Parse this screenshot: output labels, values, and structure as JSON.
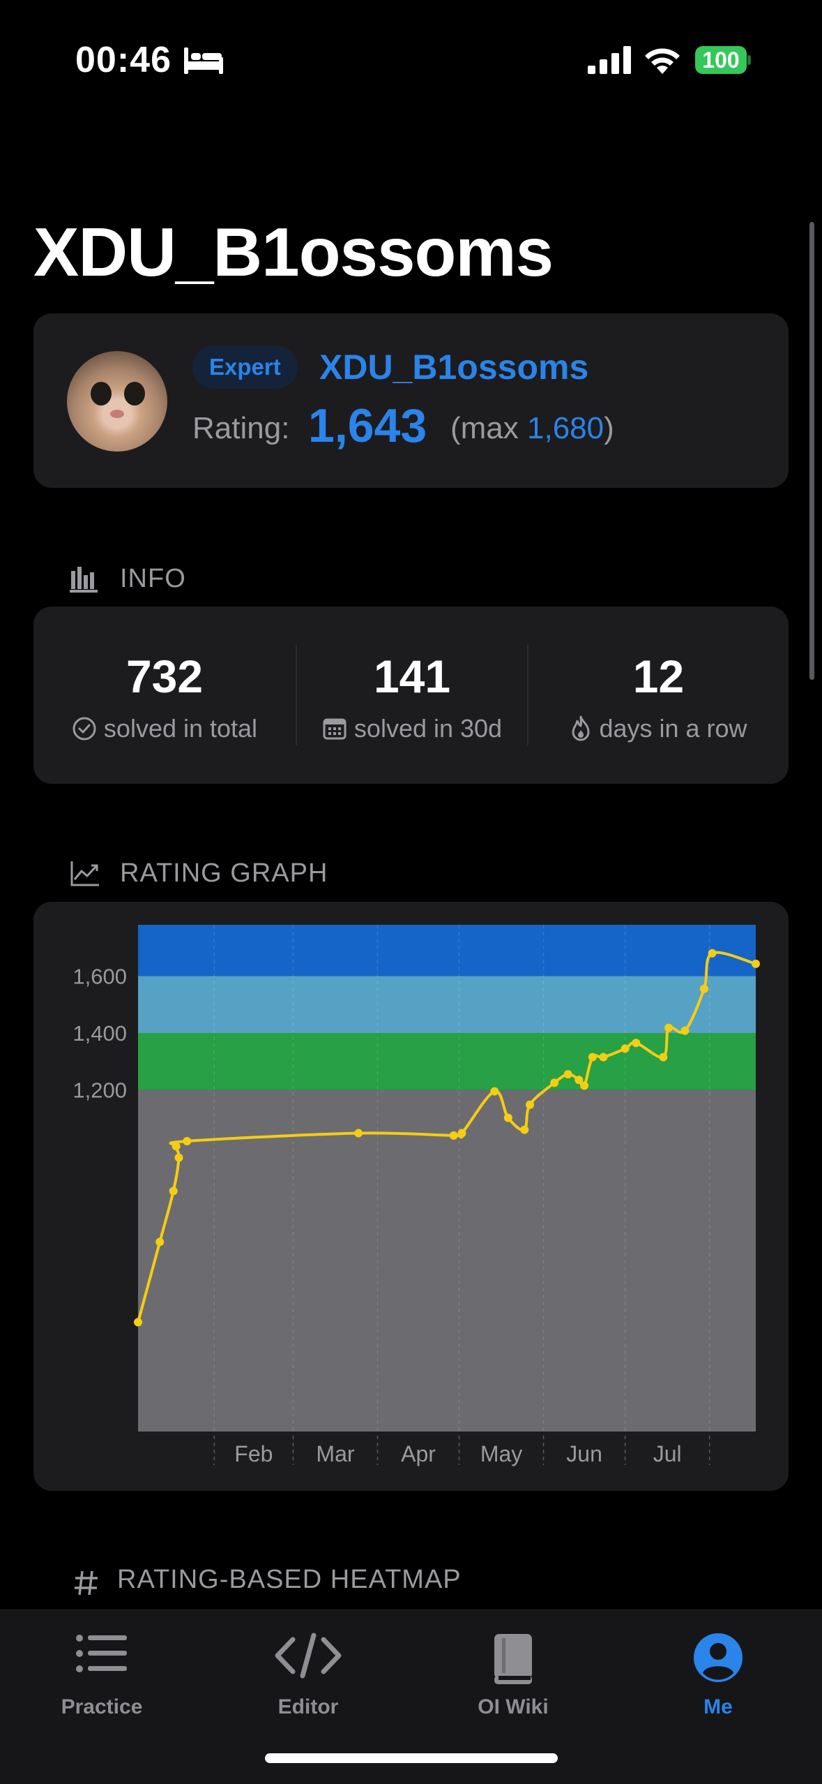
{
  "status_bar": {
    "time": "00:46",
    "battery": "100",
    "icons": [
      "bed-icon",
      "signal-icon",
      "wifi-icon",
      "battery-icon"
    ]
  },
  "page": {
    "title": "XDU_B1ossoms"
  },
  "profile": {
    "rank_badge": "Expert",
    "handle": "XDU_B1ossoms",
    "rating_label": "Rating:",
    "rating": "1,643",
    "max_prefix": "(max",
    "max_rating": "1,680",
    "max_suffix": ")"
  },
  "info": {
    "header": "INFO",
    "stats": [
      {
        "value": "732",
        "label": "solved in total",
        "icon": "check-circle-icon"
      },
      {
        "value": "141",
        "label": "solved in 30d",
        "icon": "calendar-icon"
      },
      {
        "value": "12",
        "label": "days in a row",
        "icon": "flame-icon"
      }
    ]
  },
  "rating_graph": {
    "header": "RATING GRAPH"
  },
  "heatmap": {
    "header": "RATING-BASED HEATMAP"
  },
  "chart_data": {
    "type": "line",
    "title": "",
    "xlabel": "",
    "ylabel": "",
    "x_ticks": [
      "Feb",
      "Mar",
      "Apr",
      "May",
      "Jun",
      "Jul"
    ],
    "y_ticks": [
      1200,
      1400,
      1600
    ],
    "ylim": [
      0,
      1780
    ],
    "grid": true,
    "bands": [
      {
        "from": 0,
        "to": 1200,
        "color": "#6c6c70"
      },
      {
        "from": 1200,
        "to": 1400,
        "color": "#28a045"
      },
      {
        "from": 1400,
        "to": 1600,
        "color": "#56a2c4"
      },
      {
        "from": 1600,
        "to": 1780,
        "color": "#1565c8"
      }
    ],
    "line_color": "#f5cd13",
    "series": [
      {
        "points": [
          [
            "2024-01-04",
            384
          ],
          [
            "2024-01-12",
            666
          ],
          [
            "2024-01-17",
            845
          ],
          [
            "2024-01-19",
            962
          ],
          [
            "2024-01-18",
            1002
          ],
          [
            "2024-01-22",
            1020
          ],
          [
            "2024-03-25",
            1048
          ],
          [
            "2024-04-29",
            1040
          ],
          [
            "2024-05-02",
            1048
          ],
          [
            "2024-05-14",
            1195
          ],
          [
            "2024-05-19",
            1102
          ],
          [
            "2024-05-25",
            1060
          ],
          [
            "2024-05-27",
            1148
          ],
          [
            "2024-06-05",
            1225
          ],
          [
            "2024-06-10",
            1255
          ],
          [
            "2024-06-14",
            1235
          ],
          [
            "2024-06-16",
            1215
          ],
          [
            "2024-06-19",
            1315
          ],
          [
            "2024-06-23",
            1315
          ],
          [
            "2024-07-01",
            1345
          ],
          [
            "2024-07-05",
            1365
          ],
          [
            "2024-07-15",
            1315
          ],
          [
            "2024-07-17",
            1418
          ],
          [
            "2024-07-23",
            1408
          ],
          [
            "2024-07-30",
            1555
          ],
          [
            "2024-08-02",
            1680
          ],
          [
            "2024-08-18",
            1643
          ]
        ]
      }
    ]
  },
  "tab_bar": {
    "tabs": [
      {
        "label": "Practice",
        "icon": "list-icon",
        "active": false
      },
      {
        "label": "Editor",
        "icon": "code-icon",
        "active": false
      },
      {
        "label": "OI Wiki",
        "icon": "book-icon",
        "active": false
      },
      {
        "label": "Me",
        "icon": "person-icon",
        "active": true
      }
    ],
    "active_color": "#2a84ea",
    "inactive_color": "#8e8e93"
  }
}
